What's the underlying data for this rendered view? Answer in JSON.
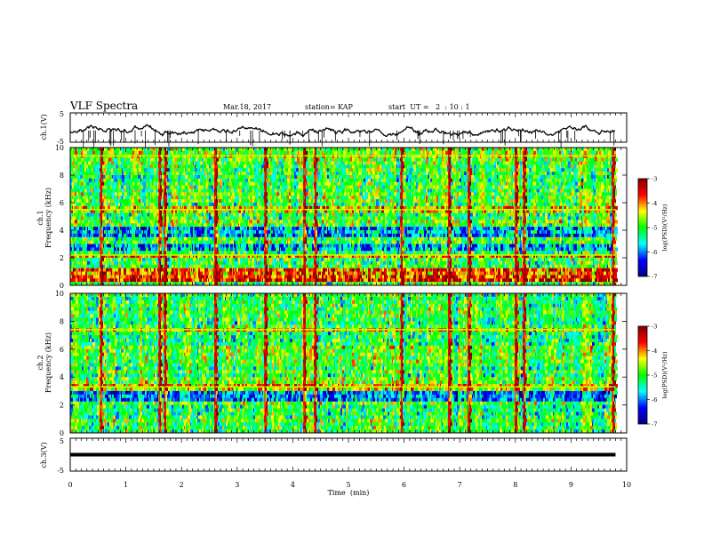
{
  "header": {
    "title": "VLF Spectra",
    "date": "Mar.18, 2017",
    "station": "station= KAP",
    "start_ut": "start  UT =   2  : 10 : 1"
  },
  "chart_data": {
    "type": "heatmap",
    "xlabel": "Time  (min)",
    "xlim": [
      0,
      10
    ],
    "x_ticks": [
      "0",
      "1",
      "2",
      "3",
      "4",
      "5",
      "6",
      "7",
      "8",
      "9",
      "10"
    ],
    "panels": [
      {
        "id": "ch1-waveform",
        "type": "line",
        "ylabel": "ch.1(V)",
        "ylim": [
          -5,
          5
        ],
        "y_ticks": [
          "5",
          "-5"
        ],
        "x_extent": [
          0,
          9.8
        ],
        "approx_level": -1,
        "approx_range": [
          -3,
          3
        ]
      },
      {
        "id": "ch1-spectrogram",
        "type": "heatmap",
        "ylabel": [
          "ch.1",
          "Frequency (kHz)"
        ],
        "ylim": [
          0,
          10
        ],
        "y_ticks": [
          "0",
          "2",
          "4",
          "6",
          "8",
          "10"
        ],
        "x_extent": [
          0,
          9.8
        ],
        "colorbar": {
          "label": "log(PSD)(V²/Hz)",
          "range": [
            -7,
            -3
          ],
          "ticks": [
            "-3",
            "-4",
            "-5",
            "-6",
            "-7"
          ]
        },
        "dominant_log_psd": -5,
        "bright_bands_khz": [
          2.2,
          5.5,
          9.4
        ],
        "dark_bands_khz": [
          3.8,
          2.6
        ],
        "high_intensity_band_khz": [
          0.3,
          1.2
        ],
        "strong_impulse_times_min": [
          0.55,
          1.6,
          1.7,
          2.6,
          3.5,
          4.2,
          4.4,
          5.95,
          6.8,
          7.15,
          8.0,
          8.15,
          9.75
        ]
      },
      {
        "id": "ch2-spectrogram",
        "type": "heatmap",
        "ylabel": [
          "ch.2",
          "Frequency (kHz)"
        ],
        "ylim": [
          0,
          10
        ],
        "y_ticks": [
          "0",
          "2",
          "4",
          "6",
          "8",
          "10"
        ],
        "x_extent": [
          0,
          9.8
        ],
        "colorbar": {
          "label": "log(PSD)(V²/Hz)",
          "range": [
            -7,
            -3
          ],
          "ticks": [
            "-3",
            "-4",
            "-5",
            "-6",
            "-7"
          ]
        },
        "dominant_log_psd": -5,
        "bright_bands_khz": [
          3.3,
          7.4
        ],
        "dark_bands_khz": [
          2.6
        ],
        "strong_impulse_times_min": [
          0.55,
          1.6,
          1.7,
          2.6,
          3.5,
          4.2,
          4.4,
          5.95,
          6.8,
          7.15,
          8.0,
          8.15,
          9.75
        ]
      },
      {
        "id": "ch3-waveform",
        "type": "line",
        "ylabel": "ch.3(V)",
        "ylim": [
          -5,
          5
        ],
        "y_ticks": [
          "5",
          "-5"
        ],
        "x_extent": [
          0,
          9.8
        ],
        "constant_level": 0
      }
    ],
    "colors": {
      "colormap": [
        "#000080",
        "#0000ff",
        "#00ffff",
        "#00ff00",
        "#ffff00",
        "#ff0000",
        "#800000"
      ]
    }
  }
}
